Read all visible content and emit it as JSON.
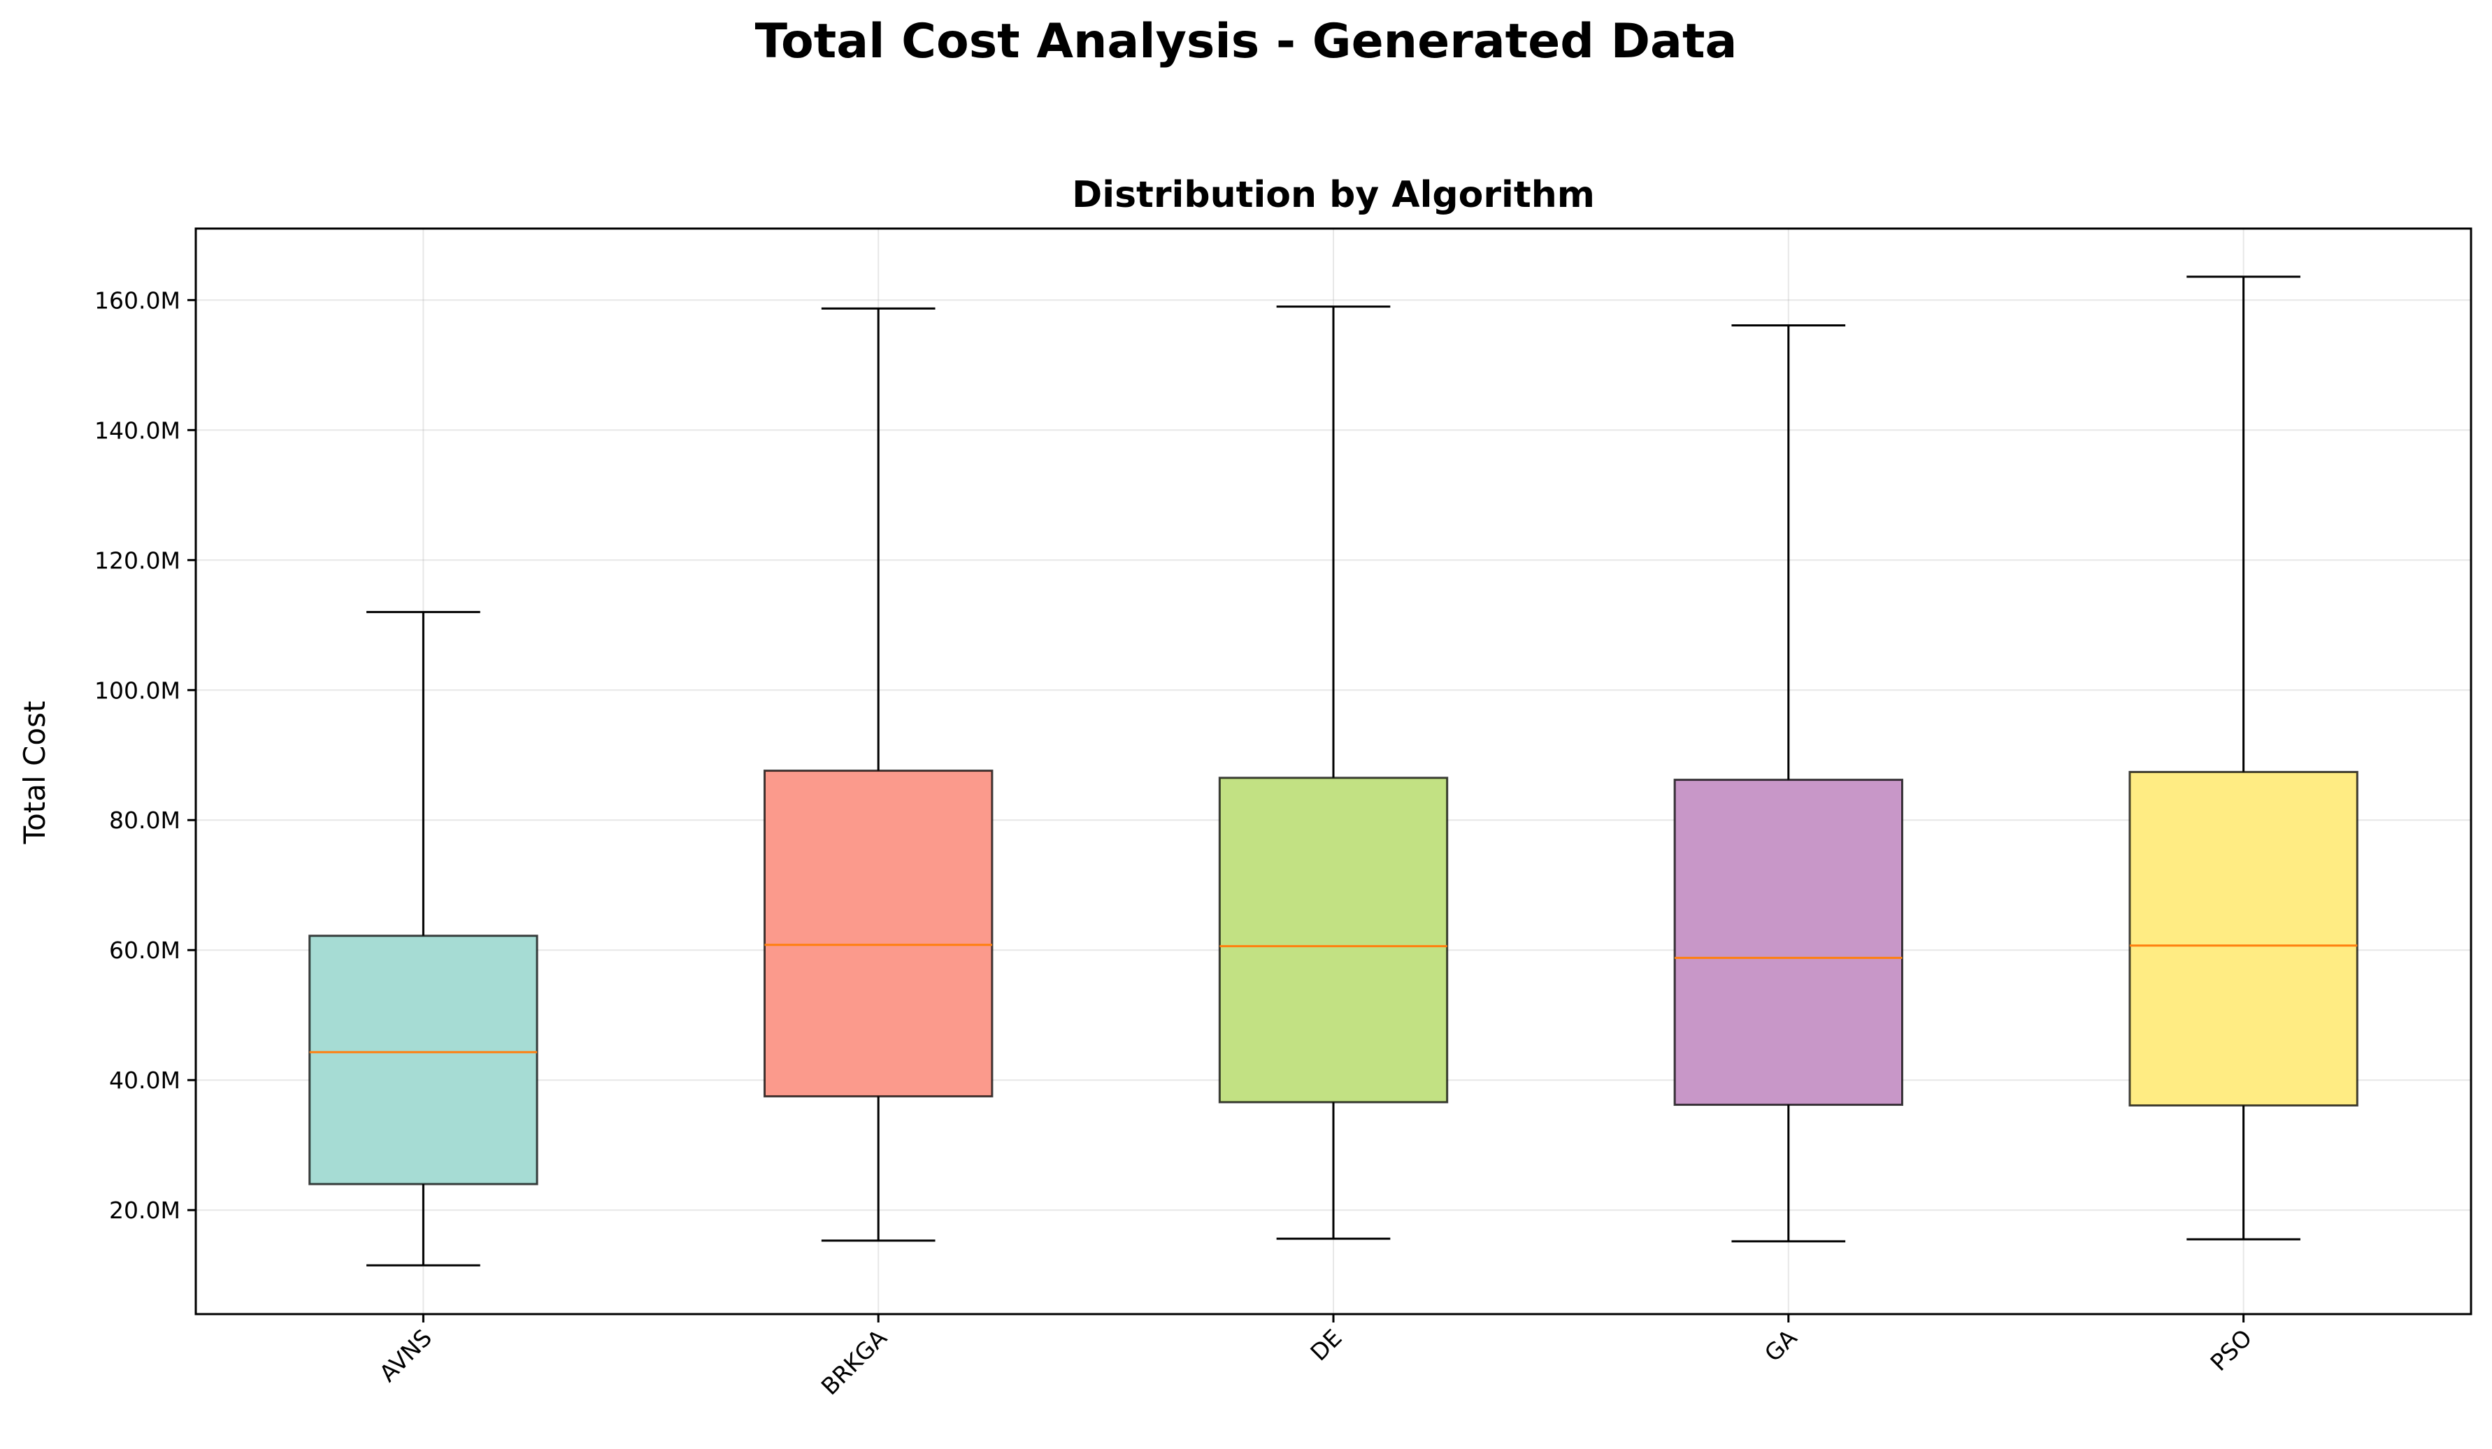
{
  "figure": {
    "suptitle": "Total Cost Analysis - Generated Data"
  },
  "chart_data": {
    "type": "boxplot",
    "title": "Distribution by Algorithm",
    "xlabel": "",
    "ylabel": "Total Cost",
    "ylim": [
      4000000,
      171000000
    ],
    "yticks": [
      {
        "value": 20000000,
        "label": "20.0M"
      },
      {
        "value": 40000000,
        "label": "40.0M"
      },
      {
        "value": 60000000,
        "label": "60.0M"
      },
      {
        "value": 80000000,
        "label": "80.0M"
      },
      {
        "value": 100000000,
        "label": "100.0M"
      },
      {
        "value": 120000000,
        "label": "120.0M"
      },
      {
        "value": 140000000,
        "label": "140.0M"
      },
      {
        "value": 160000000,
        "label": "160.0M"
      }
    ],
    "grid": true,
    "categories": [
      "AVNS",
      "BRKGA",
      "DE",
      "GA",
      "PSO"
    ],
    "boxes": [
      {
        "name": "AVNS",
        "min": 11500000,
        "q1": 24000000,
        "median": 44300000,
        "q3": 62200000,
        "max": 112000000,
        "color": "#a6dcd4"
      },
      {
        "name": "BRKGA",
        "min": 15300000,
        "q1": 37500000,
        "median": 60800000,
        "q3": 87600000,
        "max": 158700000,
        "color": "#fb9a8c"
      },
      {
        "name": "DE",
        "min": 15600000,
        "q1": 36600000,
        "median": 60600000,
        "q3": 86500000,
        "max": 159000000,
        "color": "#c2e183"
      },
      {
        "name": "GA",
        "min": 15200000,
        "q1": 36200000,
        "median": 58800000,
        "q3": 86200000,
        "max": 156100000,
        "color": "#c897c8"
      },
      {
        "name": "PSO",
        "min": 15500000,
        "q1": 36100000,
        "median": 60700000,
        "q3": 87400000,
        "max": 163600000,
        "color": "#ffec83"
      }
    ]
  }
}
